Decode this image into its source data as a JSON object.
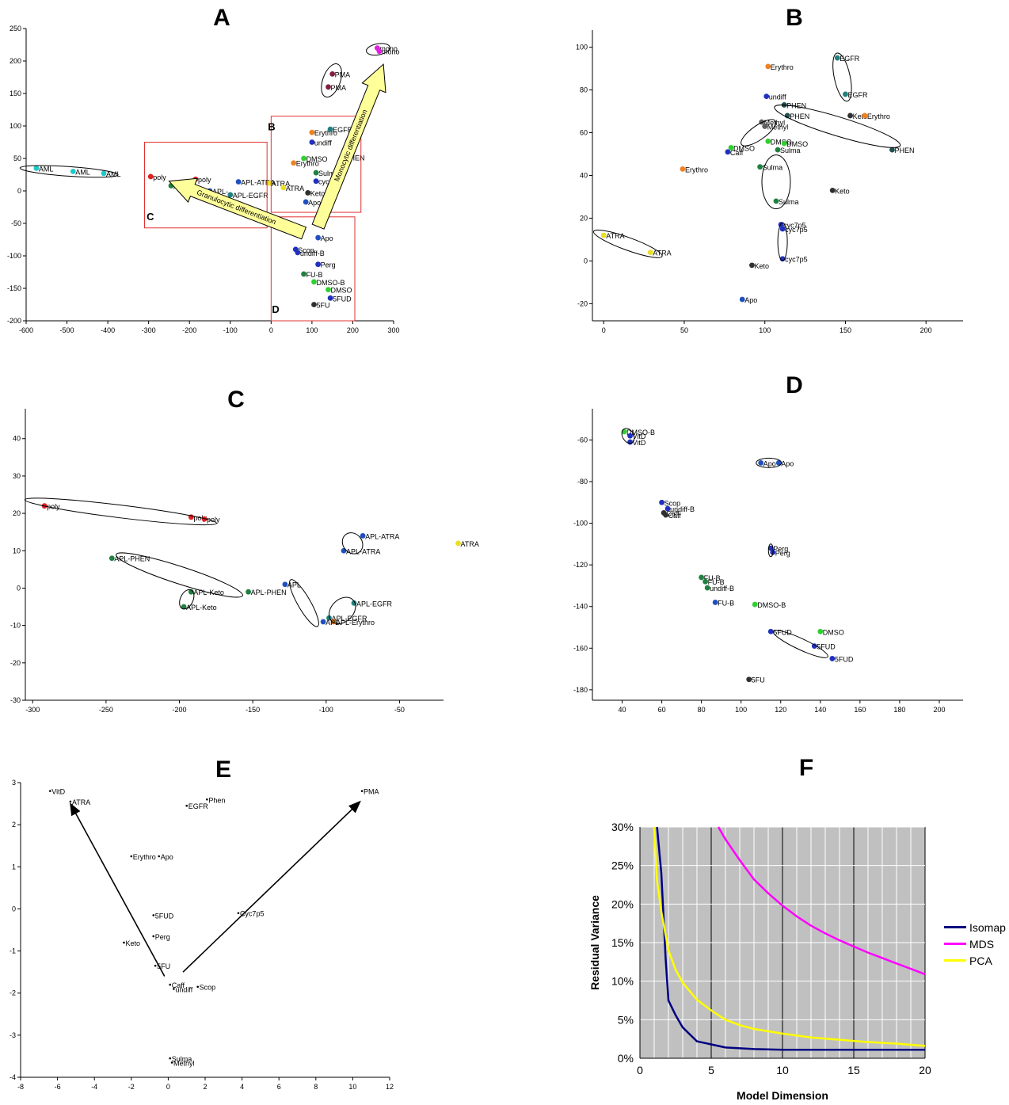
{
  "titles": {
    "A": "A",
    "B": "B",
    "C": "C",
    "D": "D",
    "E": "E",
    "F": "F"
  },
  "chart_data": [
    {
      "id": "A",
      "type": "scatter",
      "title": "A",
      "xlim": [
        -600,
        300
      ],
      "ylim": [
        -200,
        250
      ],
      "xticks": [
        -600,
        -500,
        -400,
        -300,
        -200,
        -100,
        0,
        100,
        200,
        300
      ],
      "yticks": [
        -200,
        -150,
        -100,
        -50,
        0,
        50,
        100,
        150,
        200,
        250
      ],
      "points": [
        {
          "x": -575,
          "y": 35,
          "label": "AML",
          "color": "#20c8c8"
        },
        {
          "x": -485,
          "y": 30,
          "label": "AML",
          "color": "#20c8c8"
        },
        {
          "x": -410,
          "y": 27,
          "label": "AML",
          "color": "#20c8c8"
        },
        {
          "x": -295,
          "y": 22,
          "label": "poly",
          "color": "#e02020"
        },
        {
          "x": -185,
          "y": 18,
          "label": "poly",
          "color": "#e02020"
        },
        {
          "x": -245,
          "y": 8,
          "label": "APL",
          "color": "#208040"
        },
        {
          "x": -80,
          "y": 14,
          "label": "APL-ATRA",
          "color": "#2050c0"
        },
        {
          "x": -150,
          "y": 0,
          "label": "APL-",
          "color": "#2050c0"
        },
        {
          "x": -100,
          "y": -6,
          "label": "APL-EGFR",
          "color": "#208080"
        },
        {
          "x": -5,
          "y": 12,
          "label": "ATRA",
          "color": "#e8e020"
        },
        {
          "x": 30,
          "y": 5,
          "label": "ATRA",
          "color": "#e8e020"
        },
        {
          "x": 100,
          "y": 90,
          "label": "Erythro",
          "color": "#f08020"
        },
        {
          "x": 55,
          "y": 43,
          "label": "Erythro",
          "color": "#f08020"
        },
        {
          "x": 145,
          "y": 95,
          "label": "EGFR",
          "color": "#208080"
        },
        {
          "x": 100,
          "y": 75,
          "label": "undiff",
          "color": "#2030c0"
        },
        {
          "x": 80,
          "y": 50,
          "label": "DMSO",
          "color": "#30d030"
        },
        {
          "x": 110,
          "y": 28,
          "label": "Sulma",
          "color": "#208040"
        },
        {
          "x": 110,
          "y": 15,
          "label": "cyc",
          "color": "#2030c0"
        },
        {
          "x": 90,
          "y": -3,
          "label": "Keto",
          "color": "#303030"
        },
        {
          "x": 85,
          "y": -17,
          "label": "Apo",
          "color": "#2050c0"
        },
        {
          "x": 175,
          "y": 52,
          "label": "PHEN",
          "color": "#205050"
        },
        {
          "x": 150,
          "y": 180,
          "label": "PMA",
          "color": "#802040"
        },
        {
          "x": 140,
          "y": 160,
          "label": "PMA",
          "color": "#802040"
        },
        {
          "x": 260,
          "y": 220,
          "label": "mono",
          "color": "#e020e0"
        },
        {
          "x": 265,
          "y": 215,
          "label": "mono",
          "color": "#e020e0"
        },
        {
          "x": 115,
          "y": -72,
          "label": "Apo",
          "color": "#2050c0"
        },
        {
          "x": 60,
          "y": -90,
          "label": "Scop",
          "color": "#2030c0"
        },
        {
          "x": 65,
          "y": -95,
          "label": "undiff-B",
          "color": "#2030c0"
        },
        {
          "x": 115,
          "y": -113,
          "label": "Perg",
          "color": "#2030c0"
        },
        {
          "x": 80,
          "y": -128,
          "label": "FU-B",
          "color": "#208040"
        },
        {
          "x": 105,
          "y": -140,
          "label": "DMSO-B",
          "color": "#30d030"
        },
        {
          "x": 140,
          "y": -152,
          "label": "DMSO",
          "color": "#30d030"
        },
        {
          "x": 145,
          "y": -165,
          "label": "5FUD",
          "color": "#2030c0"
        },
        {
          "x": 105,
          "y": -175,
          "label": "5FU",
          "color": "#303030"
        }
      ],
      "boxes": [
        {
          "label": "B"
        },
        {
          "label": "C"
        },
        {
          "label": "D"
        }
      ],
      "arrows": [
        {
          "label": "Granulocytic differentiation"
        },
        {
          "label": "Monocytic differentiation"
        }
      ]
    },
    {
      "id": "B",
      "type": "scatter",
      "title": "B",
      "xlim": [
        -7,
        223
      ],
      "ylim": [
        -28,
        108
      ],
      "xticks": [
        0,
        50,
        100,
        150,
        200
      ],
      "yticks": [
        -20,
        0,
        20,
        40,
        60,
        80,
        100
      ],
      "points": [
        {
          "x": 145,
          "y": 95,
          "label": "EGFR",
          "color": "#208080"
        },
        {
          "x": 102,
          "y": 91,
          "label": "Erythro",
          "color": "#f08020"
        },
        {
          "x": 150,
          "y": 78,
          "label": "EGFR",
          "color": "#208080"
        },
        {
          "x": 101,
          "y": 77,
          "label": "undiff",
          "color": "#2030c0"
        },
        {
          "x": 112,
          "y": 73,
          "label": "PHEN",
          "color": "#205050"
        },
        {
          "x": 114,
          "y": 68,
          "label": "PHEN",
          "color": "#205050"
        },
        {
          "x": 153,
          "y": 68,
          "label": "Keto",
          "color": "#303030"
        },
        {
          "x": 162,
          "y": 68,
          "label": "Erythro",
          "color": "#f08020"
        },
        {
          "x": 98,
          "y": 65,
          "label": "Methyl",
          "color": "#606060"
        },
        {
          "x": 100,
          "y": 63,
          "label": "Methyl",
          "color": "#606060"
        },
        {
          "x": 102,
          "y": 56,
          "label": "DMSO",
          "color": "#30d030"
        },
        {
          "x": 112,
          "y": 55,
          "label": "DMSO",
          "color": "#30d030"
        },
        {
          "x": 79,
          "y": 53,
          "label": "DMSO",
          "color": "#30d030"
        },
        {
          "x": 77,
          "y": 51,
          "label": "Caff",
          "color": "#2030c0"
        },
        {
          "x": 108,
          "y": 52,
          "label": "Sulma",
          "color": "#208040"
        },
        {
          "x": 179,
          "y": 52,
          "label": "PHEN",
          "color": "#205050"
        },
        {
          "x": 49,
          "y": 43,
          "label": "Erythro",
          "color": "#f08020"
        },
        {
          "x": 97,
          "y": 44,
          "label": "Sulma",
          "color": "#208040"
        },
        {
          "x": 142,
          "y": 33,
          "label": "Keto",
          "color": "#303030"
        },
        {
          "x": 107,
          "y": 28,
          "label": "Sulma",
          "color": "#208040"
        },
        {
          "x": 110,
          "y": 17,
          "label": "cyc7p5",
          "color": "#2030c0"
        },
        {
          "x": 111,
          "y": 15,
          "label": "cyc7p5",
          "color": "#2030c0"
        },
        {
          "x": 0,
          "y": 12,
          "label": "ATRA",
          "color": "#e8e020"
        },
        {
          "x": 29,
          "y": 4,
          "label": "ATRA",
          "color": "#e8e020"
        },
        {
          "x": 111,
          "y": 1,
          "label": "cyc7p5",
          "color": "#2030c0"
        },
        {
          "x": 92,
          "y": -2,
          "label": "Keto",
          "color": "#303030"
        },
        {
          "x": 86,
          "y": -18,
          "label": "Apo",
          "color": "#2050c0"
        }
      ]
    },
    {
      "id": "C",
      "type": "scatter",
      "title": "C",
      "xlim": [
        -305,
        -20
      ],
      "ylim": [
        -30,
        48
      ],
      "xticks": [
        -300,
        -250,
        -200,
        -150,
        -100,
        -50
      ],
      "yticks": [
        -30,
        -20,
        -10,
        0,
        10,
        20,
        30,
        40
      ],
      "points": [
        {
          "x": -292,
          "y": 22,
          "label": "poly",
          "color": "#e02020"
        },
        {
          "x": -192,
          "y": 19,
          "label": "poly",
          "color": "#e02020"
        },
        {
          "x": -183,
          "y": 18.5,
          "label": "poly",
          "color": "#e02020"
        },
        {
          "x": -75,
          "y": 14,
          "label": "APL-ATRA",
          "color": "#2050c0"
        },
        {
          "x": -88,
          "y": 10,
          "label": "APL-ATRA",
          "color": "#2050c0"
        },
        {
          "x": -10,
          "y": 12,
          "label": "ATRA",
          "color": "#e8e020"
        },
        {
          "x": -246,
          "y": 8,
          "label": "APL-PHEN",
          "color": "#208040"
        },
        {
          "x": -153,
          "y": -1,
          "label": "APL-PHEN",
          "color": "#208040"
        },
        {
          "x": -128,
          "y": 1,
          "label": "APL",
          "color": "#2050c0"
        },
        {
          "x": -192,
          "y": -1,
          "label": "APL-Keto",
          "color": "#208040"
        },
        {
          "x": -197,
          "y": -5,
          "label": "APL-Keto",
          "color": "#208040"
        },
        {
          "x": -81,
          "y": -4,
          "label": "APL-EGFR",
          "color": "#208080"
        },
        {
          "x": -98,
          "y": -8,
          "label": "APL-EGFR",
          "color": "#208080"
        },
        {
          "x": -95,
          "y": -9,
          "label": "APL-Erythro",
          "color": "#f08020"
        },
        {
          "x": -102,
          "y": -9,
          "label": "APL",
          "color": "#2050c0"
        }
      ]
    },
    {
      "id": "D",
      "type": "scatter",
      "title": "D",
      "xlim": [
        25,
        212
      ],
      "ylim": [
        -185,
        -45
      ],
      "xticks": [
        40,
        60,
        80,
        100,
        120,
        140,
        160,
        180,
        200
      ],
      "yticks": [
        -180,
        -160,
        -140,
        -120,
        -100,
        -80,
        -60
      ],
      "points": [
        {
          "x": 41,
          "y": -56,
          "label": "DMSO-B",
          "color": "#30d030"
        },
        {
          "x": 44,
          "y": -58,
          "label": "VitD",
          "color": "#2030c0"
        },
        {
          "x": 44,
          "y": -61,
          "label": "VitD",
          "color": "#2030c0"
        },
        {
          "x": 110,
          "y": -71,
          "label": "Apo",
          "color": "#2050c0"
        },
        {
          "x": 119,
          "y": -71,
          "label": "Apo",
          "color": "#2050c0"
        },
        {
          "x": 60,
          "y": -90,
          "label": "Scop",
          "color": "#2030c0"
        },
        {
          "x": 63,
          "y": -93,
          "label": "undiff-B",
          "color": "#2030c0"
        },
        {
          "x": 61,
          "y": -95,
          "label": "Caff",
          "color": "#303030"
        },
        {
          "x": 62,
          "y": -96,
          "label": "Caff",
          "color": "#303030"
        },
        {
          "x": 115,
          "y": -112,
          "label": "Perg",
          "color": "#2030c0"
        },
        {
          "x": 116,
          "y": -114,
          "label": "Perg",
          "color": "#2030c0"
        },
        {
          "x": 80,
          "y": -126,
          "label": "FU-B",
          "color": "#208040"
        },
        {
          "x": 82,
          "y": -128,
          "label": "FU-B",
          "color": "#208040"
        },
        {
          "x": 83,
          "y": -131,
          "label": "undiff-B",
          "color": "#208040"
        },
        {
          "x": 87,
          "y": -138,
          "label": "FU-B",
          "color": "#2050c0"
        },
        {
          "x": 107,
          "y": -139,
          "label": "DMSO-B",
          "color": "#30d030"
        },
        {
          "x": 115,
          "y": -152,
          "label": "5FUD",
          "color": "#2030c0"
        },
        {
          "x": 140,
          "y": -152,
          "label": "DMSO",
          "color": "#30d030"
        },
        {
          "x": 137,
          "y": -159,
          "label": "5FUD",
          "color": "#2030c0"
        },
        {
          "x": 146,
          "y": -165,
          "label": "5FUD",
          "color": "#2030c0"
        },
        {
          "x": 104,
          "y": -175,
          "label": "5FU",
          "color": "#303030"
        }
      ]
    },
    {
      "id": "E",
      "type": "scatter",
      "title": "E",
      "xlim": [
        -8,
        12
      ],
      "ylim": [
        -4,
        3
      ],
      "xticks": [
        -8,
        -6,
        -4,
        -2,
        0,
        2,
        4,
        6,
        8,
        10,
        12
      ],
      "yticks": [
        -4,
        -3,
        -2,
        -1,
        0,
        1,
        2,
        3
      ],
      "points": [
        {
          "x": -6.4,
          "y": 2.8,
          "label": "VitD"
        },
        {
          "x": -5.3,
          "y": 2.55,
          "label": "ATRA"
        },
        {
          "x": 2.1,
          "y": 2.6,
          "label": "Phen"
        },
        {
          "x": 1.0,
          "y": 2.45,
          "label": "EGFR"
        },
        {
          "x": 10.5,
          "y": 2.8,
          "label": "PMA"
        },
        {
          "x": -2.0,
          "y": 1.25,
          "label": "Erythro"
        },
        {
          "x": -0.5,
          "y": 1.25,
          "label": "Apo"
        },
        {
          "x": -0.8,
          "y": -0.15,
          "label": "5FUD"
        },
        {
          "x": 3.8,
          "y": -0.1,
          "label": "Cyc7p5"
        },
        {
          "x": -0.8,
          "y": -0.65,
          "label": "Perg"
        },
        {
          "x": -2.4,
          "y": -0.8,
          "label": "Keto"
        },
        {
          "x": -0.7,
          "y": -1.35,
          "label": "5FU"
        },
        {
          "x": 0.1,
          "y": -1.8,
          "label": "Caff"
        },
        {
          "x": 0.3,
          "y": -1.9,
          "label": "undiff"
        },
        {
          "x": 1.6,
          "y": -1.85,
          "label": "Scop"
        },
        {
          "x": 0.1,
          "y": -3.55,
          "label": "Sulma"
        },
        {
          "x": 0.2,
          "y": -3.65,
          "label": "Methyl"
        }
      ],
      "arrows": [
        {
          "from": [
            -0.2,
            -1.6
          ],
          "to": [
            -5.3,
            2.5
          ]
        },
        {
          "from": [
            0.8,
            -1.5
          ],
          "to": [
            10.4,
            2.55
          ]
        }
      ]
    },
    {
      "id": "F",
      "type": "line",
      "title": "F",
      "xlabel": "Model Dimension",
      "ylabel": "Residual Variance",
      "xlim": [
        0,
        20
      ],
      "ylim": [
        0,
        0.3
      ],
      "xticks": [
        0,
        5,
        10,
        15,
        20
      ],
      "yticks": [
        0,
        0.05,
        0.1,
        0.15,
        0.2,
        0.25,
        0.3
      ],
      "yticklabels": [
        "0%",
        "5%",
        "10%",
        "15%",
        "20%",
        "25%",
        "30%"
      ],
      "series": [
        {
          "name": "Isomap",
          "color": "#000080",
          "x": [
            1.2,
            1.5,
            1.8,
            2,
            2.5,
            3,
            4,
            5,
            6,
            8,
            10,
            12,
            15,
            20
          ],
          "y": [
            0.3,
            0.24,
            0.13,
            0.075,
            0.056,
            0.04,
            0.022,
            0.018,
            0.014,
            0.012,
            0.011,
            0.011,
            0.011,
            0.011
          ]
        },
        {
          "name": "MDS",
          "color": "#ff00ff",
          "x": [
            5.5,
            6,
            7,
            8,
            9,
            10,
            11,
            12,
            13,
            14,
            15,
            16,
            17,
            18,
            19,
            20
          ],
          "y": [
            0.3,
            0.284,
            0.257,
            0.232,
            0.214,
            0.198,
            0.184,
            0.172,
            0.162,
            0.153,
            0.145,
            0.137,
            0.13,
            0.123,
            0.116,
            0.109
          ]
        },
        {
          "name": "PCA",
          "color": "#ffff00",
          "x": [
            1,
            1.2,
            1.5,
            2,
            2.5,
            3,
            4,
            5,
            6,
            7,
            8,
            10,
            12,
            14,
            16,
            18,
            20
          ],
          "y": [
            0.3,
            0.23,
            0.19,
            0.14,
            0.115,
            0.098,
            0.076,
            0.062,
            0.05,
            0.043,
            0.038,
            0.032,
            0.027,
            0.024,
            0.021,
            0.019,
            0.016
          ]
        }
      ]
    }
  ]
}
